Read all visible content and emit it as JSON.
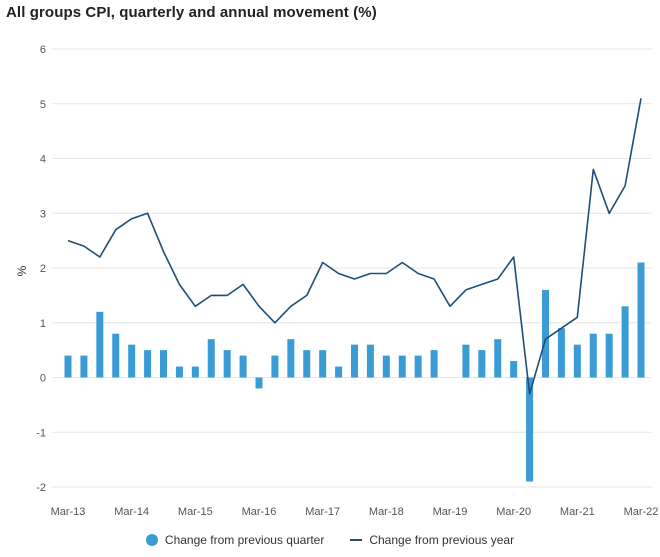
{
  "chart_data": {
    "type": "bar+line",
    "title": "All groups CPI, quarterly and annual movement (%)",
    "ylabel": "%",
    "xlabel": "",
    "ylim": [
      -2,
      6
    ],
    "yticks": [
      -2,
      -1,
      0,
      1,
      2,
      3,
      4,
      5,
      6
    ],
    "ytick_labels": [
      "-2",
      "-1",
      "0",
      "1",
      "2",
      "3",
      "4",
      "5",
      "6"
    ],
    "grid": true,
    "legend_position": "bottom",
    "categories": [
      "Mar-13",
      "Jun-13",
      "Sep-13",
      "Dec-13",
      "Mar-14",
      "Jun-14",
      "Sep-14",
      "Dec-14",
      "Mar-15",
      "Jun-15",
      "Sep-15",
      "Dec-15",
      "Mar-16",
      "Jun-16",
      "Sep-16",
      "Dec-16",
      "Mar-17",
      "Jun-17",
      "Sep-17",
      "Dec-17",
      "Mar-18",
      "Jun-18",
      "Sep-18",
      "Dec-18",
      "Mar-19",
      "Jun-19",
      "Sep-19",
      "Dec-19",
      "Mar-20",
      "Jun-20",
      "Sep-20",
      "Dec-20",
      "Mar-21",
      "Jun-21",
      "Sep-21",
      "Dec-21",
      "Mar-22"
    ],
    "xtick_labels": [
      "Mar-13",
      "Mar-14",
      "Mar-15",
      "Mar-16",
      "Mar-17",
      "Mar-18",
      "Mar-19",
      "Mar-20",
      "Mar-21",
      "Mar-22"
    ],
    "series": [
      {
        "name": "Change from previous quarter",
        "kind": "bar",
        "color": "#3a9bd5",
        "values": [
          0.4,
          0.4,
          1.2,
          0.8,
          0.6,
          0.5,
          0.5,
          0.2,
          0.2,
          0.7,
          0.5,
          0.4,
          -0.2,
          0.4,
          0.7,
          0.5,
          0.5,
          0.2,
          0.6,
          0.6,
          0.4,
          0.4,
          0.4,
          0.5,
          0.0,
          0.6,
          0.5,
          0.7,
          0.3,
          -1.9,
          1.6,
          0.9,
          0.6,
          0.8,
          0.8,
          1.3,
          2.1
        ]
      },
      {
        "name": "Change from previous year",
        "kind": "line",
        "color": "#1f4e79",
        "values": [
          2.5,
          2.4,
          2.2,
          2.7,
          2.9,
          3.0,
          2.3,
          1.7,
          1.3,
          1.5,
          1.5,
          1.7,
          1.3,
          1.0,
          1.3,
          1.5,
          2.1,
          1.9,
          1.8,
          1.9,
          1.9,
          2.1,
          1.9,
          1.8,
          1.3,
          1.6,
          1.7,
          1.8,
          2.2,
          -0.3,
          0.7,
          0.9,
          1.1,
          3.8,
          3.0,
          3.5,
          5.1
        ]
      }
    ]
  }
}
